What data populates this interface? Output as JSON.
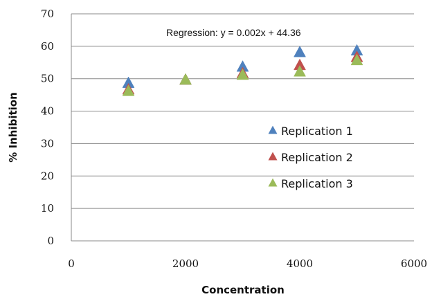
{
  "chart_data": {
    "type": "scatter",
    "title": "",
    "xlabel": "Concentration",
    "ylabel": "% Inhibition",
    "xlim": [
      0,
      6000
    ],
    "ylim": [
      0,
      70
    ],
    "x_ticks": [
      "0",
      "2000",
      "4000",
      "6000"
    ],
    "y_ticks": [
      "0",
      "10",
      "20",
      "30",
      "40",
      "50",
      "60",
      "70"
    ],
    "grid": "horizontal",
    "legend_position": "right-middle",
    "annotation": "Regression: y = 0.002x + 44.36",
    "series": [
      {
        "name": "Replication 1",
        "color": "#4F81BD",
        "marker": "triangle",
        "x": [
          1000,
          2000,
          3000,
          4000,
          5000
        ],
        "y": [
          48.5,
          49.5,
          53.5,
          58,
          58.5
        ]
      },
      {
        "name": "Replication 2",
        "color": "#C0504D",
        "marker": "triangle",
        "x": [
          1000,
          2000,
          3000,
          4000,
          5000
        ],
        "y": [
          46.5,
          49.5,
          51.5,
          54,
          56.5
        ]
      },
      {
        "name": "Replication 3",
        "color": "#9BBB59",
        "marker": "triangle",
        "x": [
          1000,
          2000,
          3000,
          4000,
          5000
        ],
        "y": [
          46,
          49.5,
          51,
          52,
          55.5
        ]
      }
    ]
  }
}
